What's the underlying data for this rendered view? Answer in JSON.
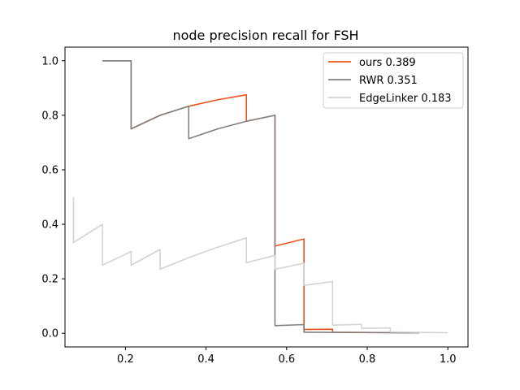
{
  "chart_data": {
    "type": "line",
    "title": "node precision recall for FSH",
    "xlabel": "",
    "ylabel": "",
    "xlim": [
      0.05,
      1.05
    ],
    "ylim": [
      -0.05,
      1.05
    ],
    "xticks": [
      0.2,
      0.4,
      0.6,
      0.8,
      1.0
    ],
    "xtick_labels": [
      "0.2",
      "0.4",
      "0.6",
      "0.8",
      "1.0"
    ],
    "yticks": [
      0.0,
      0.2,
      0.4,
      0.6,
      0.8,
      1.0
    ],
    "ytick_labels": [
      "0.0",
      "0.2",
      "0.4",
      "0.6",
      "0.8",
      "1.0"
    ],
    "grid": false,
    "legend_position": "top-right",
    "series": [
      {
        "name": "ours 0.389",
        "color": "#e8541c",
        "x": [
          0.143,
          0.214,
          0.214,
          0.286,
          0.357,
          0.429,
          0.5,
          0.5,
          0.571,
          0.571,
          0.643,
          0.643,
          0.714,
          0.714,
          0.929
        ],
        "y": [
          1.0,
          1.0,
          0.75,
          0.8,
          0.833,
          0.857,
          0.875,
          0.778,
          0.8,
          0.32,
          0.346,
          0.014,
          0.015,
          0.004,
          0.002
        ]
      },
      {
        "name": "RWR 0.351",
        "color": "#808080",
        "x": [
          0.143,
          0.214,
          0.214,
          0.286,
          0.357,
          0.357,
          0.429,
          0.5,
          0.571,
          0.571,
          0.643,
          0.643,
          0.929
        ],
        "y": [
          1.0,
          1.0,
          0.75,
          0.8,
          0.833,
          0.714,
          0.75,
          0.778,
          0.8,
          0.028,
          0.032,
          0.004,
          0.002
        ]
      },
      {
        "name": "EdgeLinker 0.183",
        "color": "#d3d3d3",
        "x": [
          0.071,
          0.071,
          0.143,
          0.143,
          0.214,
          0.214,
          0.286,
          0.286,
          0.357,
          0.429,
          0.5,
          0.5,
          0.571,
          0.571,
          0.643,
          0.643,
          0.714,
          0.714,
          0.786,
          0.786,
          0.857,
          0.857,
          1.0
        ],
        "y": [
          0.5,
          0.333,
          0.4,
          0.25,
          0.3,
          0.25,
          0.308,
          0.235,
          0.278,
          0.316,
          0.35,
          0.259,
          0.286,
          0.235,
          0.257,
          0.176,
          0.19,
          0.03,
          0.033,
          0.018,
          0.02,
          0.005,
          0.002
        ]
      }
    ]
  }
}
